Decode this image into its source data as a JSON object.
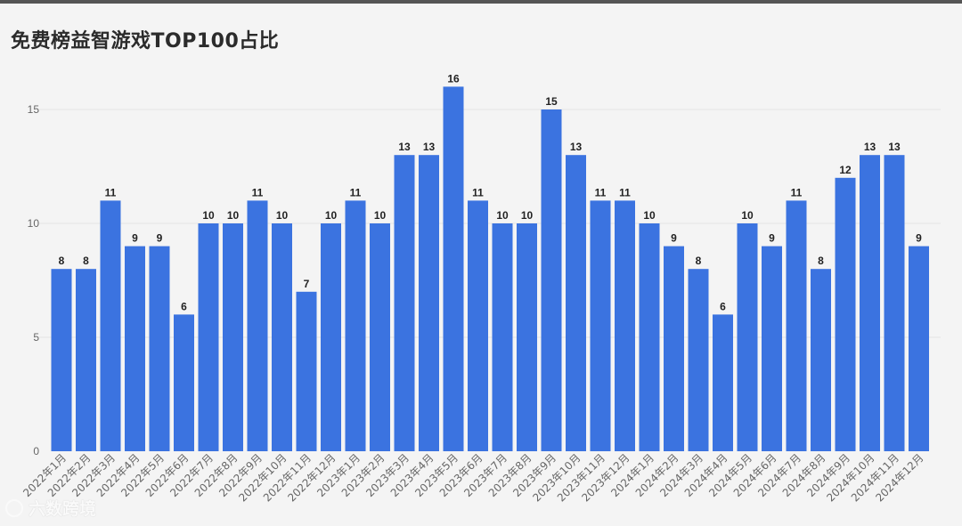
{
  "title": "免费榜益智游戏TOP100占比",
  "watermark": {
    "text": "六数跨境",
    "icon": "circle-logo-icon"
  },
  "colors": {
    "bar": "#3b73e0",
    "grid": "#e4e4e4",
    "tick_text": "#666666",
    "label_text": "#222222"
  },
  "chart_data": {
    "type": "bar",
    "categories": [
      "2022年1月",
      "2022年2月",
      "2022年3月",
      "2022年4月",
      "2022年5月",
      "2022年6月",
      "2022年7月",
      "2022年8月",
      "2022年9月",
      "2022年10月",
      "2022年11月",
      "2022年12月",
      "2023年1月",
      "2023年2月",
      "2023年3月",
      "2023年4月",
      "2023年5月",
      "2023年6月",
      "2023年7月",
      "2023年8月",
      "2023年9月",
      "2023年10月",
      "2023年11月",
      "2023年12月",
      "2024年1月",
      "2024年2月",
      "2024年3月",
      "2024年4月",
      "2024年5月",
      "2024年6月",
      "2024年7月",
      "2024年8月",
      "2024年9月",
      "2024年10月",
      "2024年11月",
      "2024年12月"
    ],
    "values": [
      8,
      8,
      11,
      9,
      9,
      6,
      10,
      10,
      11,
      10,
      7,
      10,
      11,
      10,
      13,
      13,
      16,
      11,
      10,
      10,
      15,
      13,
      11,
      11,
      10,
      9,
      8,
      6,
      10,
      9,
      11,
      8,
      12,
      13,
      13,
      9
    ],
    "yticks": [
      0,
      5,
      10,
      15
    ],
    "ylim": [
      0,
      16
    ],
    "grid": true,
    "data_labels": true
  }
}
